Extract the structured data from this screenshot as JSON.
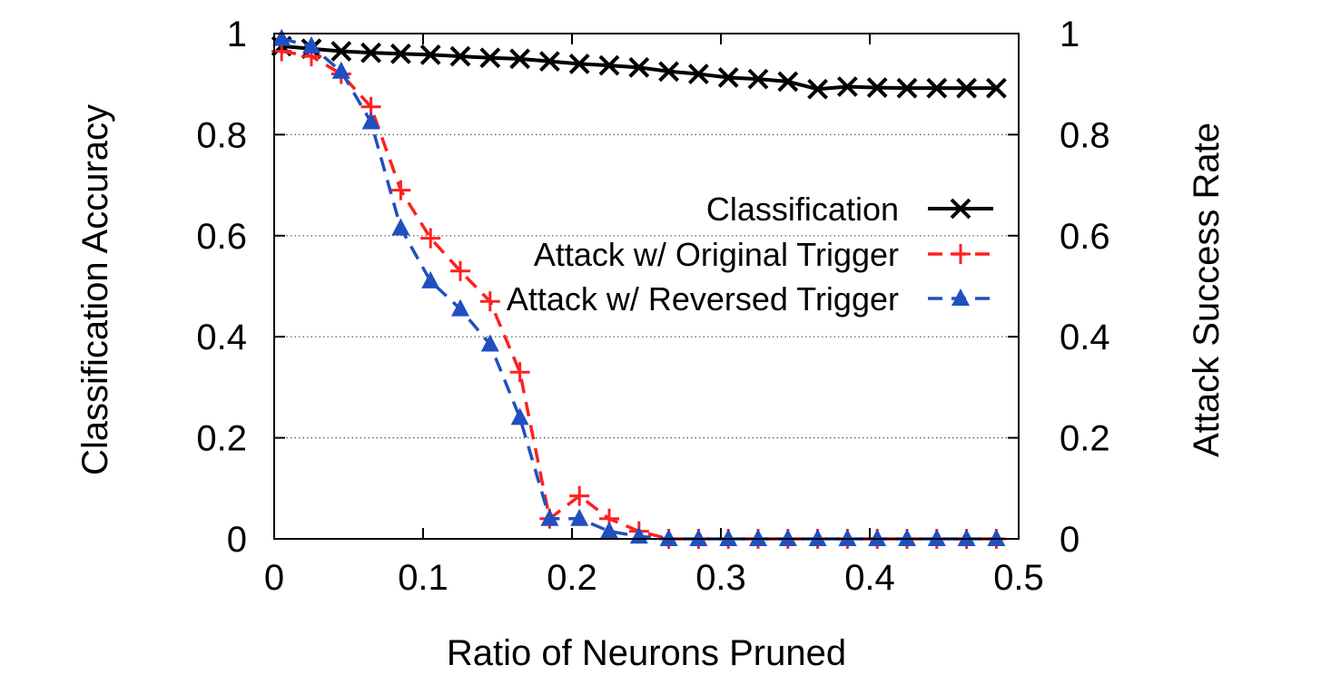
{
  "chart_data": {
    "type": "line",
    "title": "",
    "xlabel": "Ratio of Neurons Pruned",
    "ylabel": "Classification Accuracy",
    "y2label": "Attack Success Rate",
    "xlim": [
      0,
      0.5
    ],
    "ylim": [
      0,
      1
    ],
    "y2lim": [
      0,
      1
    ],
    "x_ticks": [
      "0",
      "0.1",
      "0.2",
      "0.3",
      "0.4",
      "0.5"
    ],
    "y_ticks": [
      "0",
      "0.2",
      "0.4",
      "0.6",
      "0.8",
      "1"
    ],
    "y2_ticks": [
      "0",
      "0.2",
      "0.4",
      "0.6",
      "0.8",
      "1"
    ],
    "grid": "horizontal dotted",
    "legend_position": "right-middle",
    "series": [
      {
        "name": "Classification",
        "color": "#000000",
        "marker": "x",
        "dash": "solid",
        "x": [
          0.005,
          0.025,
          0.045,
          0.065,
          0.085,
          0.105,
          0.125,
          0.145,
          0.165,
          0.185,
          0.205,
          0.225,
          0.245,
          0.265,
          0.285,
          0.305,
          0.325,
          0.345,
          0.365,
          0.385,
          0.405,
          0.425,
          0.445,
          0.465,
          0.485
        ],
        "y": [
          0.975,
          0.97,
          0.965,
          0.962,
          0.96,
          0.958,
          0.955,
          0.952,
          0.95,
          0.945,
          0.94,
          0.937,
          0.933,
          0.925,
          0.92,
          0.913,
          0.91,
          0.905,
          0.89,
          0.895,
          0.893,
          0.892,
          0.892,
          0.892,
          0.892
        ]
      },
      {
        "name": "Attack w/ Original Trigger",
        "color": "#ff2020",
        "marker": "+",
        "dash": "dashed",
        "x": [
          0.005,
          0.025,
          0.045,
          0.065,
          0.085,
          0.105,
          0.125,
          0.145,
          0.165,
          0.185,
          0.205,
          0.225,
          0.245,
          0.265,
          0.285,
          0.305,
          0.325,
          0.345,
          0.365,
          0.385,
          0.405,
          0.425,
          0.445,
          0.465,
          0.485
        ],
        "y": [
          0.965,
          0.955,
          0.92,
          0.855,
          0.69,
          0.595,
          0.53,
          0.47,
          0.33,
          0.04,
          0.085,
          0.04,
          0.015,
          0.0,
          0.0,
          0.0,
          0.0,
          0.0,
          0.0,
          0.0,
          0.0,
          0.0,
          0.0,
          0.0,
          0.0
        ]
      },
      {
        "name": "Attack w/ Reversed Trigger",
        "color": "#2050c0",
        "marker": "triangle",
        "dash": "dashed",
        "x": [
          0.005,
          0.025,
          0.045,
          0.065,
          0.085,
          0.105,
          0.125,
          0.145,
          0.165,
          0.185,
          0.205,
          0.225,
          0.245,
          0.265,
          0.285,
          0.305,
          0.325,
          0.345,
          0.365,
          0.385,
          0.405,
          0.425,
          0.445,
          0.465,
          0.485
        ],
        "y": [
          0.99,
          0.975,
          0.925,
          0.825,
          0.615,
          0.51,
          0.455,
          0.385,
          0.24,
          0.04,
          0.04,
          0.015,
          0.005,
          0.0,
          0.0,
          0.0,
          0.0,
          0.0,
          0.0,
          0.0,
          0.0,
          0.0,
          0.0,
          0.0,
          0.0
        ]
      }
    ]
  }
}
